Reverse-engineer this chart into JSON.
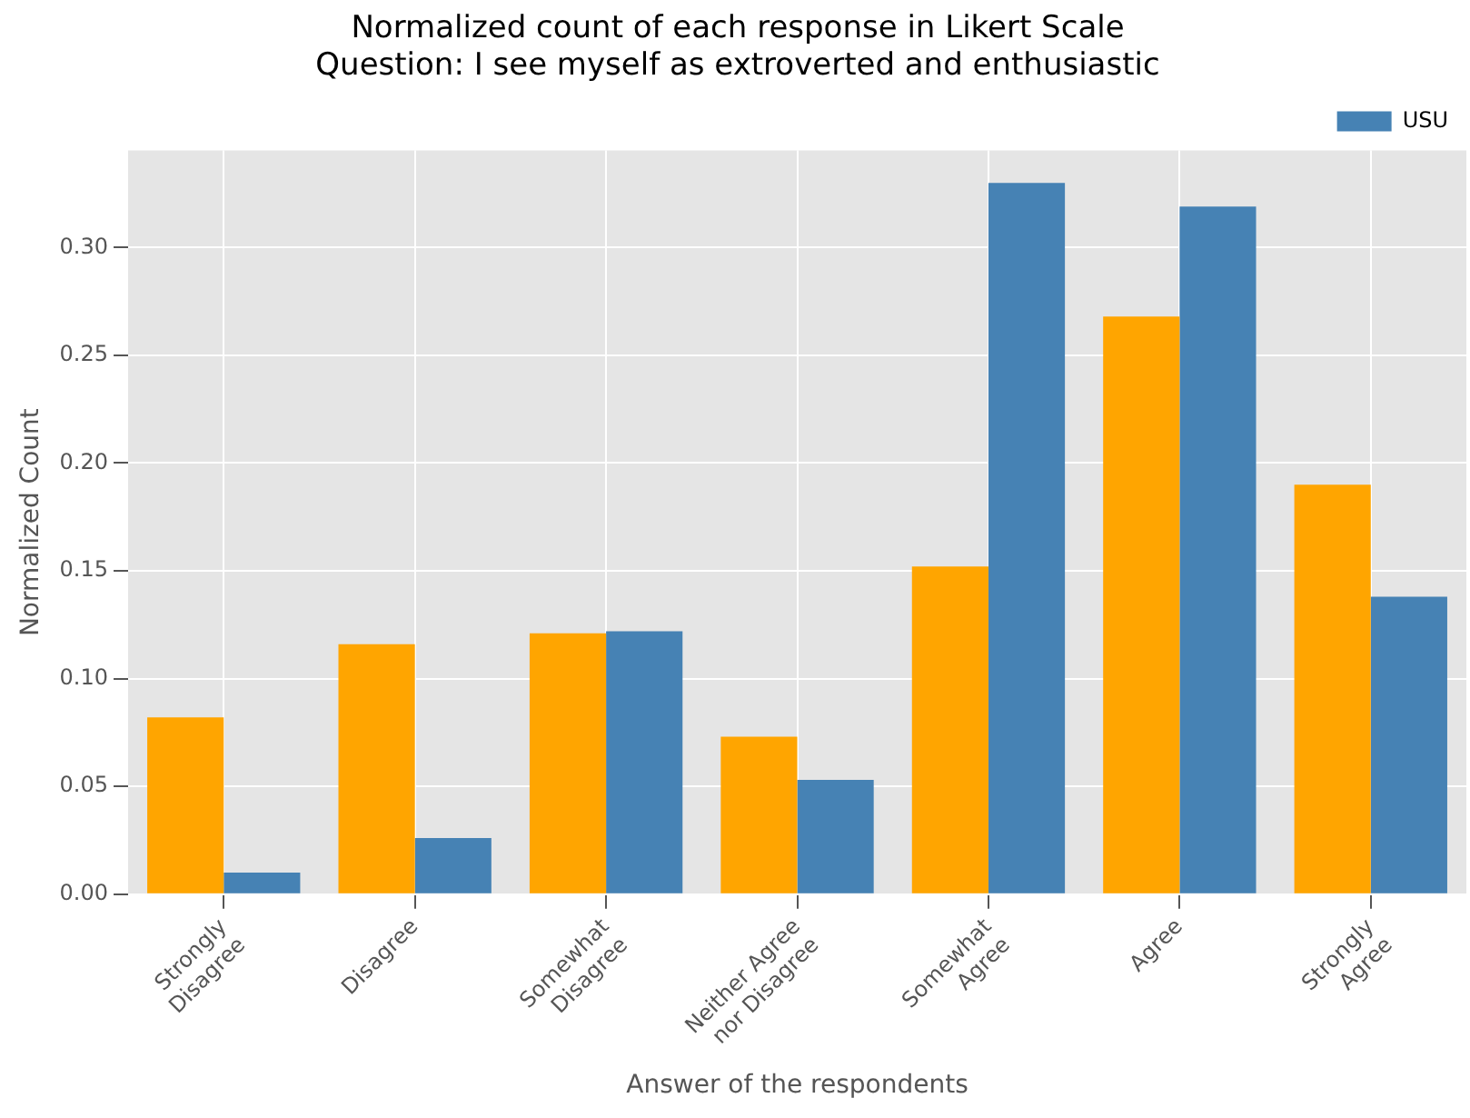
{
  "chart_data": {
    "type": "bar",
    "title": "Normalized count of each response in Likert Scale\nQuestion: I see myself as extroverted and enthusiastic",
    "xlabel": "Answer of the respondents",
    "ylabel": "Normalized Count",
    "categories": [
      "Strongly\nDisagree",
      "Disagree",
      "Somewhat\nDisagree",
      "Neither Agree\nnor Disagree",
      "Somewhat\nAgree",
      "Agree",
      "Strongly\nAgree"
    ],
    "series": [
      {
        "color": "#ffa500",
        "values": [
          0.082,
          0.116,
          0.121,
          0.073,
          0.152,
          0.268,
          0.19
        ]
      },
      {
        "name": "USU",
        "color": "#4682b4",
        "values": [
          0.01,
          0.026,
          0.122,
          0.053,
          0.33,
          0.319,
          0.138
        ]
      }
    ],
    "ylim": [
      0,
      0.345
    ],
    "yticks": [
      {
        "value": 0,
        "label": "0.00"
      },
      {
        "value": 0.05,
        "label": "0.05"
      },
      {
        "value": 0.1,
        "label": "0.10"
      },
      {
        "value": 0.15,
        "label": "0.15"
      },
      {
        "value": 0.2,
        "label": "0.20"
      },
      {
        "value": 0.25,
        "label": "0.25"
      },
      {
        "value": 0.3,
        "label": "0.30"
      }
    ],
    "grid": true,
    "legend": "top right"
  }
}
